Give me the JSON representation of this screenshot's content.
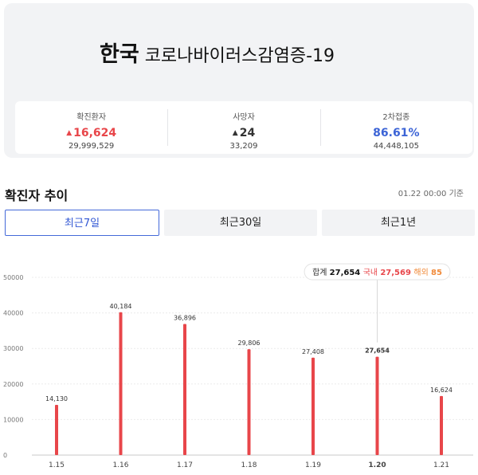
{
  "header": {
    "title_strong": "한국",
    "title_rest": "코로나바이러스감염증-19"
  },
  "stats": [
    {
      "label": "확진환자",
      "value": "16,624",
      "sub": "29,999,529",
      "trend": "▲",
      "color": "#e8464a"
    },
    {
      "label": "사망자",
      "value": "24",
      "sub": "33,209",
      "trend": "▲",
      "color": "#333333"
    },
    {
      "label": "2차접종",
      "value": "86.61%",
      "sub": "44,448,105",
      "trend": "",
      "color": "#3c64d6"
    }
  ],
  "section": {
    "title": "확진자 추이",
    "timestamp": "01.22 00:00 기준"
  },
  "tabs": [
    {
      "label": "최근7일",
      "active": true
    },
    {
      "label": "최근30일",
      "active": false
    },
    {
      "label": "최근1년",
      "active": false
    }
  ],
  "tooltip": {
    "total_label": "합계",
    "total": "27,654",
    "domestic_label": "국내",
    "domestic": "27,569",
    "overseas_label": "해외",
    "overseas": "85"
  },
  "chart_data": {
    "type": "bar",
    "categories": [
      "1.15",
      "1.16",
      "1.17",
      "1.18",
      "1.19",
      "1.20",
      "1.21"
    ],
    "values": [
      14130,
      40184,
      36896,
      29806,
      27408,
      27654,
      16624
    ],
    "labels": [
      "14,130",
      "40,184",
      "36,896",
      "29,806",
      "27,408",
      "27,654",
      "16,624"
    ],
    "highlighted": "1.20",
    "yticks": [
      0,
      10000,
      20000,
      30000,
      40000,
      50000
    ],
    "ylim": [
      0,
      50000
    ],
    "bar_color": "#e8464a",
    "grid": true
  }
}
